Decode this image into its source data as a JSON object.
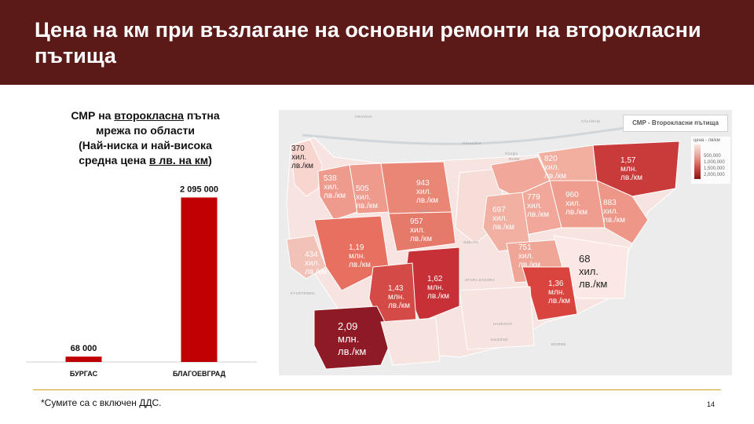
{
  "header": {
    "title": "Цена на км при възлагане на основни ремонти на второкласни пътища"
  },
  "chart_title": {
    "line1_a": "СМР на ",
    "line1_b": "второкласна",
    "line1_c": " пътна",
    "line2": "мрежа по области",
    "line3": "(Най-ниска и най-висока",
    "line4_a": "средна цена ",
    "line4_b": "в лв. на км",
    "line4_c": ")"
  },
  "chart_data": {
    "type": "bar",
    "categories": [
      "БУРГАС",
      "БЛАГОЕВГРАД"
    ],
    "values": [
      68000,
      2095000
    ],
    "value_labels": [
      "68 000",
      "2 095 000"
    ],
    "ylim": [
      0,
      2200000
    ],
    "color": "#c00000"
  },
  "map": {
    "title": "СМР - Второкласни пътища",
    "legend_title": "цена - лв/км",
    "legend_ticks": [
      "500,000",
      "1,000,000",
      "1,500,000",
      "2,000,000"
    ],
    "cities": [
      "CRAIOVA",
      "CĂLĂRAȘI",
      "Alexandria",
      "Giurgiu",
      "RUSE",
      "Pleven",
      "Gabrovo",
      "STARA ZAGORA",
      "HASKOVO",
      "KYUSTENDIL",
      "EDIRNE",
      "Kardzhali"
    ],
    "regions": [
      {
        "l1": "370",
        "l2": "хил.",
        "l3": "лв./км"
      },
      {
        "l1": "538",
        "l2": "хил.",
        "l3": "лв./км"
      },
      {
        "l1": "505",
        "l2": "хил.",
        "l3": "лв./км"
      },
      {
        "l1": "943",
        "l2": "хил.",
        "l3": "лв./км"
      },
      {
        "l1": "820",
        "l2": "хил.",
        "l3": "лв./км"
      },
      {
        "l1": "1,57",
        "l2": "млн.",
        "l3": "лв./км"
      },
      {
        "l1": "779",
        "l2": "хил.",
        "l3": "лв./км"
      },
      {
        "l1": "960",
        "l2": "хил.",
        "l3": "лв./км"
      },
      {
        "l1": "883",
        "l2": "хил.",
        "l3": "лв./км"
      },
      {
        "l1": "697",
        "l2": "хил.",
        "l3": "лв./км"
      },
      {
        "l1": "957",
        "l2": "хил.",
        "l3": "лв./км"
      },
      {
        "l1": "434",
        "l2": "хил.",
        "l3": "лв./км"
      },
      {
        "l1": "1,19",
        "l2": "млн.",
        "l3": "лв./км"
      },
      {
        "l1": "751",
        "l2": "хил.",
        "l3": "лв./км"
      },
      {
        "l1": "68",
        "l2": "хил.",
        "l3": "лв./км"
      },
      {
        "l1": "1,62",
        "l2": "млн.",
        "l3": "лв./км"
      },
      {
        "l1": "1,43",
        "l2": "млн.",
        "l3": "лв./км"
      },
      {
        "l1": "1,36",
        "l2": "млн.",
        "l3": "лв./км"
      },
      {
        "l1": "2,09",
        "l2": "млн.",
        "l3": "лв./км"
      }
    ]
  },
  "footnote": "*Сумите са с включен ДДС.",
  "page_number": "14"
}
